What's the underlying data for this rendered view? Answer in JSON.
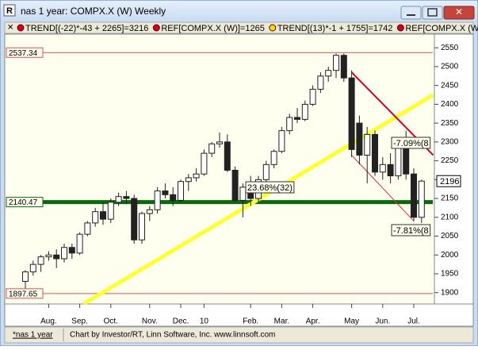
{
  "chart_data": {
    "type": "candlestick",
    "title": "nas 1 year: COMPX.X (W) Weekly",
    "legend_items": [
      {
        "text": "TREND[(-22)*-43 + 2265]=3216",
        "color": "#cc0022"
      },
      {
        "text": "REF[COMPX.X (W)]=1265",
        "color": "#cc0022"
      },
      {
        "text": "TREND[(13)*-1 + 1755]=1742",
        "color": "#f0e000"
      },
      {
        "text": "REF[COMPX.X (W",
        "color": "#cc0022"
      }
    ],
    "categories": [
      null,
      null,
      null,
      "Aug.",
      null,
      null,
      null,
      "Sep.",
      null,
      null,
      null,
      "Oct.",
      null,
      null,
      null,
      null,
      "Nov.",
      null,
      null,
      null,
      "Dec.",
      null,
      null,
      "10",
      null,
      null,
      null,
      null,
      null,
      "Feb.",
      null,
      null,
      null,
      "Mar.",
      null,
      null,
      null,
      "Apr.",
      null,
      null,
      null,
      null,
      "May",
      null,
      null,
      null,
      "Jun.",
      null,
      null,
      null,
      "Jul.",
      null
    ],
    "open": [
      1930,
      1955,
      1975,
      1995,
      2000,
      1990,
      2020,
      2005,
      2055,
      2085,
      2115,
      2095,
      2140,
      2155,
      2150,
      2040,
      2110,
      2120,
      2170,
      2160,
      2145,
      2195,
      2205,
      2215,
      2270,
      2295,
      2300,
      2225,
      2145,
      2180,
      2150,
      2200,
      2240,
      2275,
      2330,
      2365,
      2360,
      2400,
      2440,
      2475,
      2490,
      2530,
      2470,
      2350,
      2265,
      2320,
      2220,
      2240,
      2210,
      2290,
      2215,
      2100
    ],
    "high": [
      1960,
      1985,
      2000,
      2010,
      2015,
      2030,
      2030,
      2060,
      2090,
      2125,
      2140,
      2150,
      2165,
      2170,
      2160,
      2115,
      2130,
      2180,
      2190,
      2180,
      2200,
      2215,
      2230,
      2280,
      2300,
      2325,
      2320,
      2235,
      2190,
      2210,
      2210,
      2250,
      2280,
      2340,
      2375,
      2390,
      2410,
      2450,
      2485,
      2500,
      2535,
      2535,
      2490,
      2370,
      2340,
      2330,
      2260,
      2270,
      2300,
      2330,
      2230,
      2200
    ],
    "low": [
      1905,
      1945,
      1955,
      1985,
      1965,
      1980,
      1990,
      2000,
      2050,
      2075,
      2080,
      2085,
      2130,
      2135,
      2030,
      2030,
      2090,
      2110,
      2150,
      2130,
      2140,
      2170,
      2195,
      2210,
      2260,
      2285,
      2220,
      2140,
      2100,
      2130,
      2140,
      2190,
      2230,
      2270,
      2320,
      2350,
      2355,
      2395,
      2430,
      2460,
      2470,
      2460,
      2260,
      2240,
      2190,
      2210,
      2200,
      2190,
      2200,
      2200,
      2090,
      2085
    ],
    "close": [
      1955,
      1975,
      1995,
      2000,
      1990,
      2020,
      2005,
      2055,
      2085,
      2115,
      2095,
      2140,
      2155,
      2150,
      2040,
      2110,
      2120,
      2170,
      2160,
      2145,
      2195,
      2205,
      2215,
      2270,
      2295,
      2300,
      2225,
      2145,
      2180,
      2150,
      2200,
      2240,
      2275,
      2330,
      2365,
      2360,
      2400,
      2440,
      2475,
      2490,
      2530,
      2470,
      2280,
      2265,
      2320,
      2220,
      2240,
      2210,
      2290,
      2215,
      2100,
      2196
    ],
    "up_color": "#ffffff",
    "down_color": "#222222",
    "ylim": [
      1872,
      2561
    ],
    "yticks": [
      1900,
      1950,
      2000,
      2050,
      2100,
      2150,
      2200,
      2250,
      2300,
      2350,
      2400,
      2450,
      2500,
      2550
    ],
    "ref_lines": [
      {
        "value": 2537.34,
        "color": "#e05050"
      },
      {
        "value": 2140.47,
        "color": "#0a6a0a"
      },
      {
        "value": 1897.65,
        "color": "#e05050"
      }
    ],
    "trendlines": [
      {
        "x": [
          7.5,
          52.5
        ],
        "values": [
          1870,
          2425
        ],
        "color": "#ffff33"
      },
      {
        "x": [
          42,
          52.5
        ],
        "values": [
          2485,
          2265
        ],
        "color": "#cc0033"
      },
      {
        "x": [
          42,
          50
        ],
        "values": [
          2265,
          2090
        ],
        "color": "#dd3344"
      }
    ],
    "annotations": [
      "23.68%(32)",
      "-7.09%(8",
      "-7.81%(8"
    ]
  },
  "status_bar": {
    "left": "*nas 1 year",
    "right": "Chart by Investor/RT, Linn Software, Inc. www.linnsoft.com"
  }
}
